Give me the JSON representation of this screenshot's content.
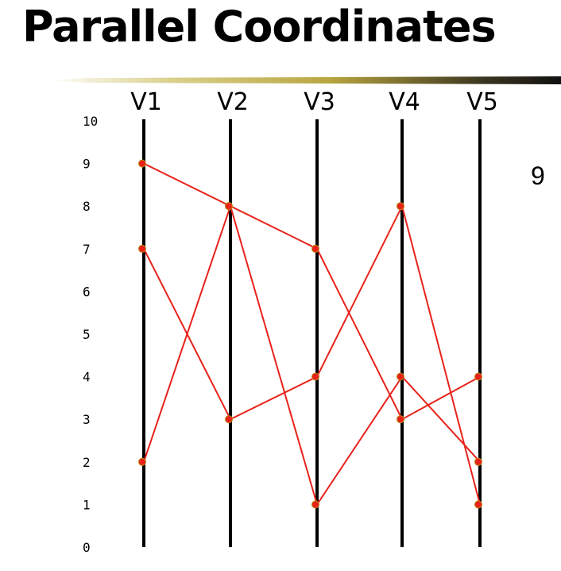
{
  "slide": {
    "title": "Parallel Coordinates",
    "side_number": "9"
  },
  "chart_data": {
    "type": "parallel-coordinates",
    "title": "Parallel Coordinates",
    "axes": [
      "V1",
      "V2",
      "V3",
      "V4",
      "V5"
    ],
    "yticks": [
      0,
      1,
      2,
      3,
      4,
      5,
      6,
      7,
      8,
      9,
      10
    ],
    "ylim": [
      0,
      10
    ],
    "grid": false,
    "colors": {
      "line": "#e8221b",
      "marker": "#e8221b",
      "axis": "#000000"
    },
    "lines": [
      {
        "values": [
          9,
          8,
          7,
          3,
          4
        ]
      },
      {
        "values": [
          7,
          3,
          4,
          8,
          1
        ]
      },
      {
        "values": [
          2,
          8,
          1,
          4,
          2
        ]
      }
    ]
  }
}
